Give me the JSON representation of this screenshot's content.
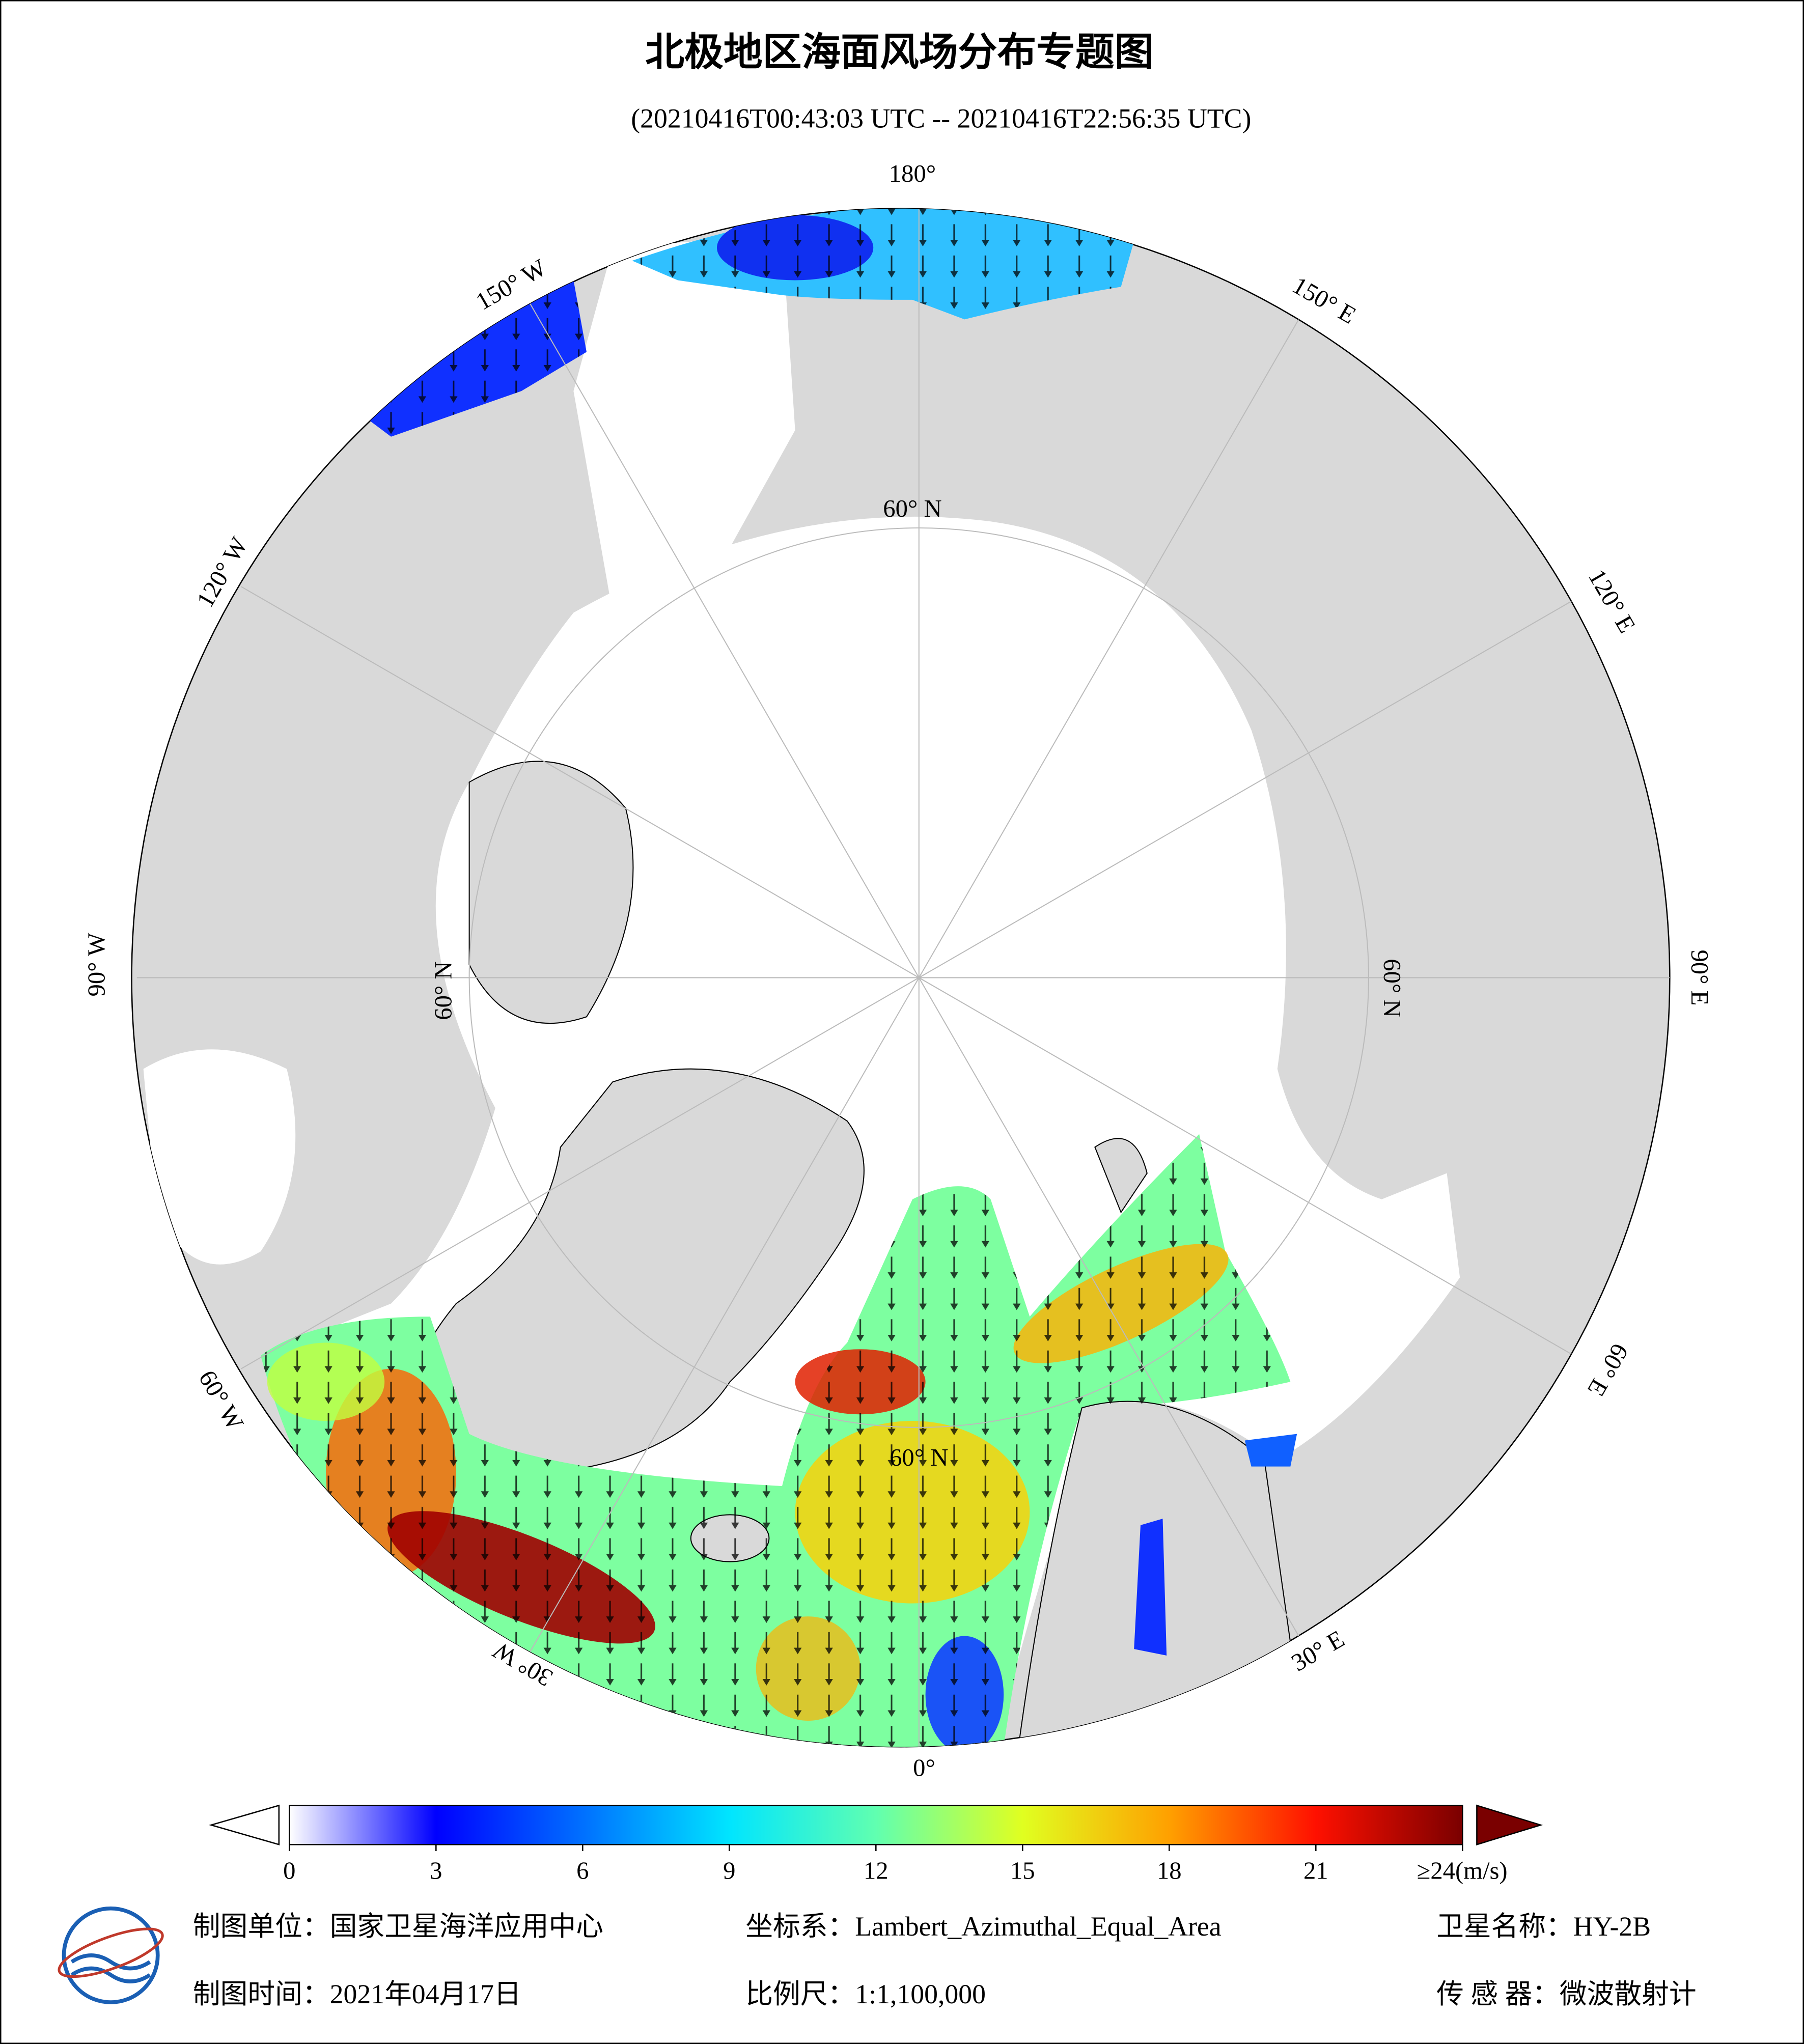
{
  "header": {
    "title": "北极地区海面风场分布专题图",
    "subtitle": "(20210416T00:43:03 UTC -- 20210416T22:56:35 UTC)"
  },
  "map": {
    "longitude_labels": [
      "180°",
      "150° W",
      "120° W",
      "90° W",
      "60° W",
      "30° W",
      "0°",
      "30° E",
      "60° E",
      "90° E",
      "120° E",
      "150° E"
    ],
    "latitude_label": "60° N"
  },
  "colorbar": {
    "range": [
      0,
      24
    ],
    "ticks": [
      0,
      3,
      6,
      9,
      12,
      15,
      18,
      21,
      {
        "value": 24,
        "label": "≥24(m/s)"
      }
    ],
    "colors": [
      "#ffffff",
      "#0000ff",
      "#0070ff",
      "#00e5ff",
      "#60ffb0",
      "#e0ff20",
      "#ffa000",
      "#ff1000",
      "#7a0000"
    ]
  },
  "footer": {
    "unit": "制图单位：国家卫星海洋应用中心",
    "coordinate_system": "坐标系：Lambert_Azimuthal_Equal_Area",
    "satellite": "卫星名称：HY-2B",
    "date": "制图时间：2021年04月17日",
    "scale": "比例尺：1:1,100,000",
    "sensor": "传 感 器：微波散射计"
  }
}
